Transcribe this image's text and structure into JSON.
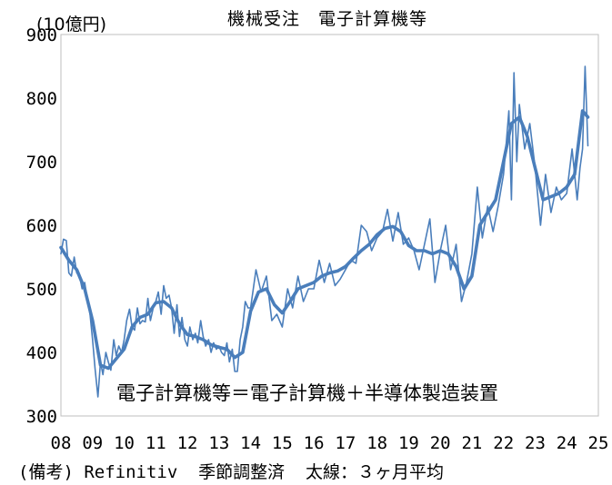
{
  "chart_data": {
    "type": "line",
    "title": "機械受注　電子計算機等",
    "ylabel": "(10億円)",
    "ylim": [
      300,
      900
    ],
    "yticks": [
      "300",
      "400",
      "500",
      "600",
      "700",
      "800",
      "900"
    ],
    "xticks": [
      "08",
      "09",
      "10",
      "11",
      "12",
      "13",
      "14",
      "15",
      "16",
      "17",
      "18",
      "19",
      "20",
      "21",
      "22",
      "23",
      "24",
      "25"
    ],
    "xlim": [
      2008,
      2025
    ],
    "annotation": "電子計算機等＝電子計算機＋半導体製造装置",
    "grid": false,
    "legend": "none",
    "series": [
      {
        "style": "thin monthly",
        "color": "#4a7ebb",
        "x": [
          2008.0,
          2008.08,
          2008.17,
          2008.25,
          2008.33,
          2008.42,
          2008.5,
          2008.58,
          2008.67,
          2008.75,
          2008.83,
          2008.92,
          2009.0,
          2009.08,
          2009.17,
          2009.25,
          2009.33,
          2009.42,
          2009.5,
          2009.58,
          2009.67,
          2009.75,
          2009.83,
          2009.92,
          2010.0,
          2010.08,
          2010.17,
          2010.25,
          2010.33,
          2010.42,
          2010.5,
          2010.58,
          2010.67,
          2010.75,
          2010.83,
          2010.92,
          2011.0,
          2011.08,
          2011.17,
          2011.25,
          2011.33,
          2011.42,
          2011.5,
          2011.58,
          2011.67,
          2011.75,
          2011.83,
          2011.92,
          2012.0,
          2012.08,
          2012.17,
          2012.25,
          2012.33,
          2012.42,
          2012.5,
          2012.58,
          2012.67,
          2012.75,
          2012.83,
          2012.92,
          2013.0,
          2013.08,
          2013.17,
          2013.25,
          2013.33,
          2013.42,
          2013.5,
          2013.58,
          2013.67,
          2013.75,
          2013.83,
          2013.92,
          2014.0,
          2014.17,
          2014.33,
          2014.5,
          2014.67,
          2014.83,
          2015.0,
          2015.17,
          2015.33,
          2015.5,
          2015.67,
          2015.83,
          2016.0,
          2016.17,
          2016.33,
          2016.5,
          2016.67,
          2016.83,
          2017.0,
          2017.17,
          2017.33,
          2017.5,
          2017.67,
          2017.83,
          2018.0,
          2018.17,
          2018.33,
          2018.5,
          2018.67,
          2018.83,
          2019.0,
          2019.17,
          2019.33,
          2019.5,
          2019.67,
          2019.83,
          2020.0,
          2020.17,
          2020.33,
          2020.5,
          2020.67,
          2020.83,
          2021.0,
          2021.17,
          2021.33,
          2021.5,
          2021.67,
          2021.83,
          2022.0,
          2022.08,
          2022.17,
          2022.25,
          2022.33,
          2022.42,
          2022.5,
          2022.67,
          2022.83,
          2023.0,
          2023.17,
          2023.33,
          2023.5,
          2023.67,
          2023.83,
          2024.0,
          2024.17,
          2024.33,
          2024.42,
          2024.5,
          2024.58,
          2024.67
        ],
        "y": [
          555,
          578,
          576,
          525,
          520,
          550,
          525,
          522,
          500,
          510,
          485,
          460,
          420,
          375,
          330,
          385,
          365,
          400,
          385,
          372,
          420,
          395,
          410,
          400,
          420,
          450,
          468,
          440,
          435,
          470,
          445,
          450,
          448,
          485,
          450,
          470,
          480,
          495,
          460,
          505,
          485,
          490,
          470,
          430,
          475,
          425,
          455,
          420,
          410,
          440,
          420,
          430,
          415,
          450,
          425,
          410,
          420,
          400,
          415,
          405,
          410,
          400,
          395,
          415,
          385,
          405,
          370,
          370,
          420,
          440,
          480,
          470,
          470,
          530,
          495,
          520,
          450,
          460,
          440,
          500,
          470,
          520,
          480,
          500,
          500,
          545,
          510,
          540,
          505,
          515,
          530,
          545,
          540,
          600,
          590,
          560,
          580,
          590,
          625,
          575,
          620,
          570,
          580,
          560,
          530,
          570,
          610,
          510,
          560,
          600,
          530,
          570,
          480,
          510,
          555,
          660,
          580,
          630,
          590,
          630,
          680,
          725,
          780,
          640,
          840,
          700,
          790,
          720,
          760,
          690,
          600,
          680,
          620,
          660,
          640,
          650,
          720,
          640,
          690,
          720,
          850,
          725
        ]
      },
      {
        "style": "thick 3-month average",
        "color": "#4a7ebb",
        "x": [
          2008.0,
          2008.25,
          2008.5,
          2008.75,
          2009.0,
          2009.25,
          2009.5,
          2009.75,
          2010.0,
          2010.25,
          2010.5,
          2010.75,
          2011.0,
          2011.25,
          2011.5,
          2011.75,
          2012.0,
          2012.25,
          2012.5,
          2012.75,
          2013.0,
          2013.25,
          2013.5,
          2013.75,
          2014.0,
          2014.25,
          2014.5,
          2014.75,
          2015.0,
          2015.25,
          2015.5,
          2015.75,
          2016.0,
          2016.25,
          2016.5,
          2016.75,
          2017.0,
          2017.25,
          2017.5,
          2017.75,
          2018.0,
          2018.25,
          2018.5,
          2018.75,
          2019.0,
          2019.25,
          2019.5,
          2019.75,
          2020.0,
          2020.25,
          2020.5,
          2020.75,
          2021.0,
          2021.25,
          2021.5,
          2021.75,
          2022.0,
          2022.25,
          2022.5,
          2022.75,
          2023.0,
          2023.25,
          2023.5,
          2023.75,
          2024.0,
          2024.25,
          2024.5,
          2024.67
        ],
        "y": [
          565,
          545,
          530,
          500,
          450,
          380,
          375,
          390,
          405,
          440,
          455,
          460,
          478,
          480,
          470,
          445,
          428,
          425,
          420,
          412,
          408,
          405,
          392,
          400,
          465,
          495,
          500,
          475,
          462,
          480,
          500,
          505,
          510,
          520,
          525,
          528,
          535,
          548,
          560,
          570,
          585,
          595,
          598,
          590,
          568,
          560,
          560,
          555,
          560,
          555,
          535,
          500,
          520,
          600,
          620,
          640,
          700,
          760,
          770,
          740,
          690,
          640,
          645,
          650,
          660,
          680,
          780,
          770
        ]
      }
    ]
  },
  "note": "(備考) Refinitiv  季節調整済  太線：３ヶ月平均"
}
